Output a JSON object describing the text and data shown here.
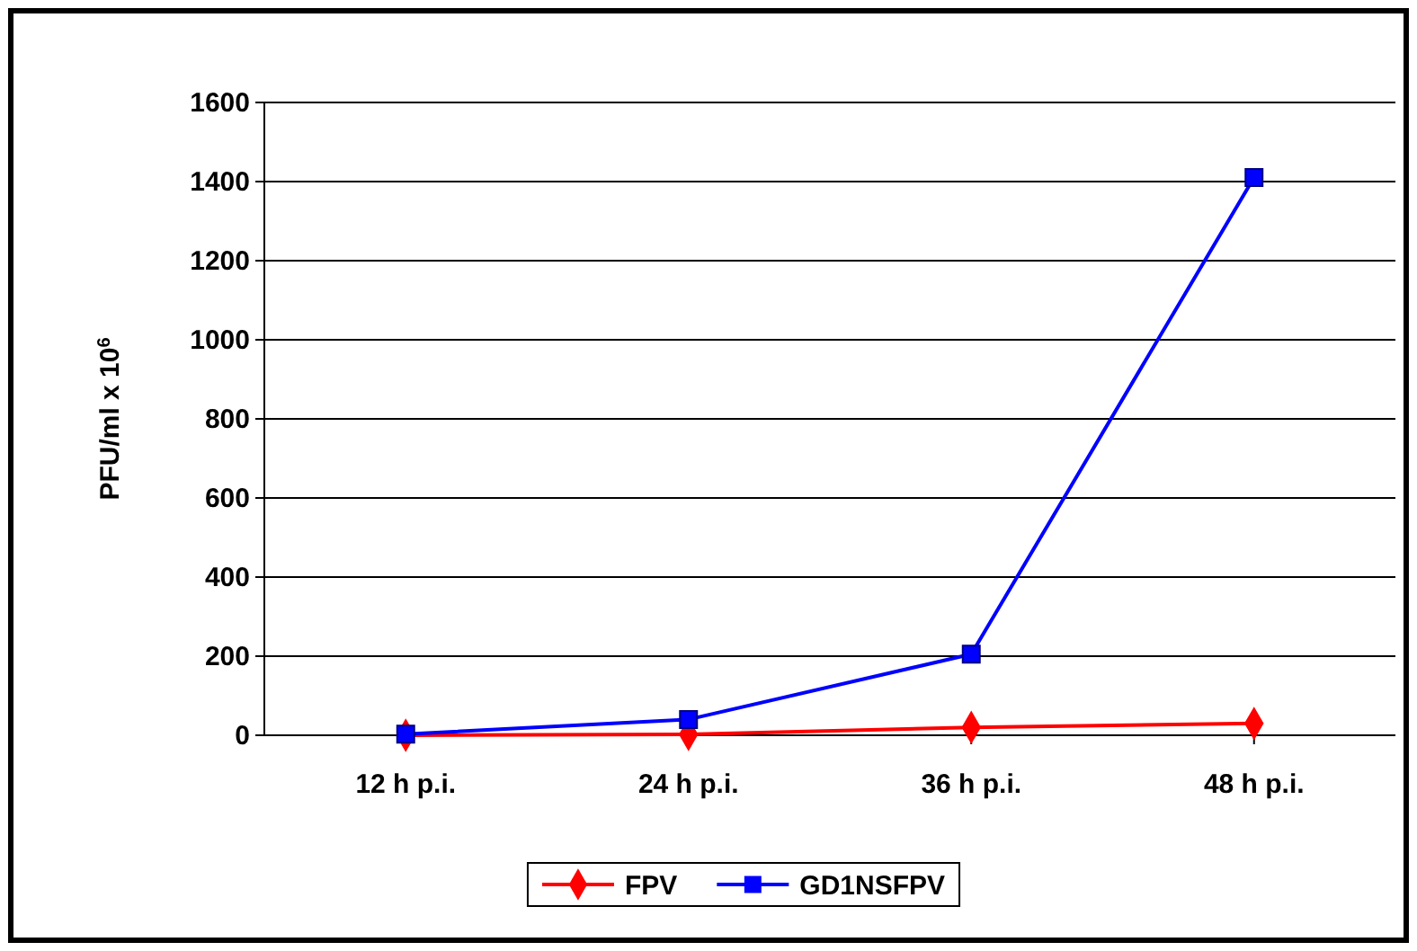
{
  "chart_data": {
    "type": "line",
    "ylabel": "PFU/ml x 10$^{6}$",
    "categories": [
      "12 h p.i.",
      "24 h p.i.",
      "36 h p.i.",
      "48 h p.i."
    ],
    "series": [
      {
        "name": "FPV",
        "color": "#ff0000",
        "values": [
          0,
          2,
          20,
          30
        ],
        "marker": "diamond"
      },
      {
        "name": "GD1NSFPV",
        "color": "#0000ff",
        "values": [
          3,
          40,
          205,
          1410
        ],
        "marker": "square"
      }
    ],
    "ylim": [
      0,
      1600
    ],
    "yticks": [
      0,
      200,
      400,
      600,
      800,
      1000,
      1200,
      1400,
      1600
    ],
    "grid": "y",
    "legend": "bottom",
    "line_style": "solid"
  }
}
